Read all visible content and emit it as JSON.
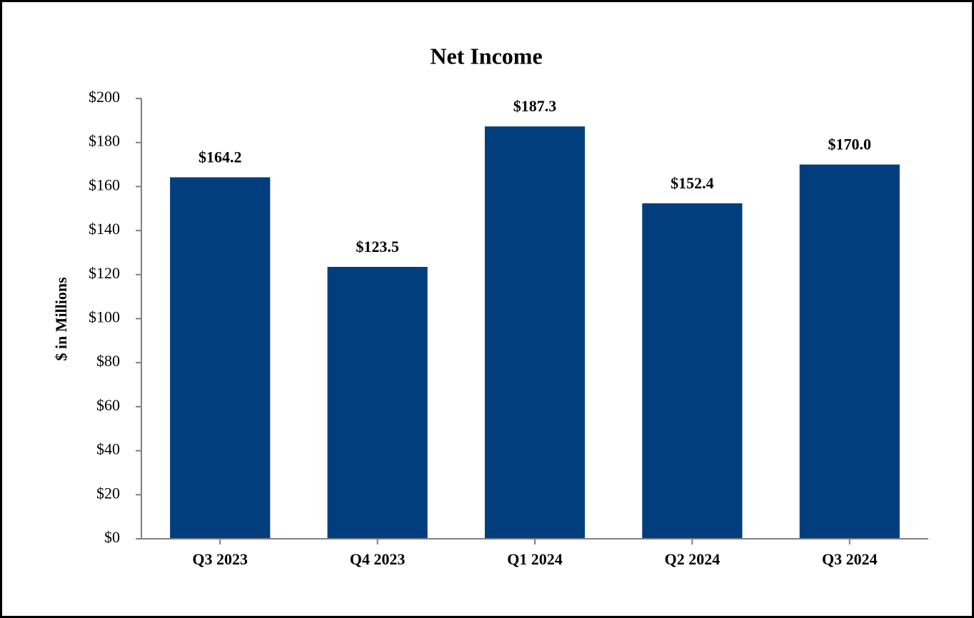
{
  "chart_data": {
    "type": "bar",
    "title": "Net Income",
    "y_label": "$ in Millions",
    "categories": [
      "Q3 2023",
      "Q4 2023",
      "Q1 2024",
      "Q2 2024",
      "Q3 2024"
    ],
    "values": [
      164.2,
      123.5,
      187.3,
      152.4,
      170.0
    ],
    "value_labels": [
      "$164.2",
      "$123.5",
      "$187.3",
      "$152.4",
      "$170.0"
    ],
    "color": "#023e7d",
    "ylim": [
      0,
      200
    ],
    "yticks": [
      {
        "value": 0,
        "label": "$0"
      },
      {
        "value": 20,
        "label": "$20"
      },
      {
        "value": 40,
        "label": "$40"
      },
      {
        "value": 60,
        "label": "$60"
      },
      {
        "value": 80,
        "label": "$80"
      },
      {
        "value": 100,
        "label": "$100"
      },
      {
        "value": 120,
        "label": "$120"
      },
      {
        "value": 140,
        "label": "$140"
      },
      {
        "value": 160,
        "label": "$160"
      },
      {
        "value": 180,
        "label": "$180"
      },
      {
        "value": 200,
        "label": "$200"
      }
    ],
    "grid": false
  }
}
